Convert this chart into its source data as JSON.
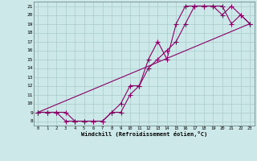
{
  "xlabel": "Windchill (Refroidissement éolien,°C)",
  "bg_color": "#cce8e8",
  "grid_color": "#aacccc",
  "line_color": "#880066",
  "xlim": [
    -0.5,
    23.5
  ],
  "ylim": [
    7.5,
    21.5
  ],
  "xticks": [
    0,
    1,
    2,
    3,
    4,
    5,
    6,
    7,
    8,
    9,
    10,
    11,
    12,
    13,
    14,
    15,
    16,
    17,
    18,
    19,
    20,
    21,
    22,
    23
  ],
  "yticks": [
    8,
    9,
    10,
    11,
    12,
    13,
    14,
    15,
    16,
    17,
    18,
    19,
    20,
    21
  ],
  "line1_x": [
    0,
    1,
    2,
    3,
    4,
    5,
    6,
    7,
    8,
    9,
    10,
    11,
    12,
    13,
    14,
    15,
    16,
    17,
    18,
    19,
    20,
    21,
    22,
    23
  ],
  "line1_y": [
    9,
    9,
    9,
    8,
    8,
    8,
    8,
    8,
    9,
    9,
    11,
    12,
    14,
    15,
    16,
    17,
    19,
    21,
    21,
    21,
    21,
    19,
    20,
    19
  ],
  "line2_x": [
    0,
    1,
    2,
    3,
    4,
    5,
    6,
    7,
    8,
    9,
    10,
    11,
    12,
    13,
    14,
    15,
    16,
    17,
    18,
    19,
    20,
    21,
    22,
    23
  ],
  "line2_y": [
    9,
    9,
    9,
    9,
    8,
    8,
    8,
    8,
    9,
    10,
    12,
    12,
    15,
    17,
    15,
    19,
    21,
    21,
    21,
    21,
    20,
    21,
    20,
    19
  ],
  "line3_x": [
    0,
    23
  ],
  "line3_y": [
    9,
    19
  ]
}
